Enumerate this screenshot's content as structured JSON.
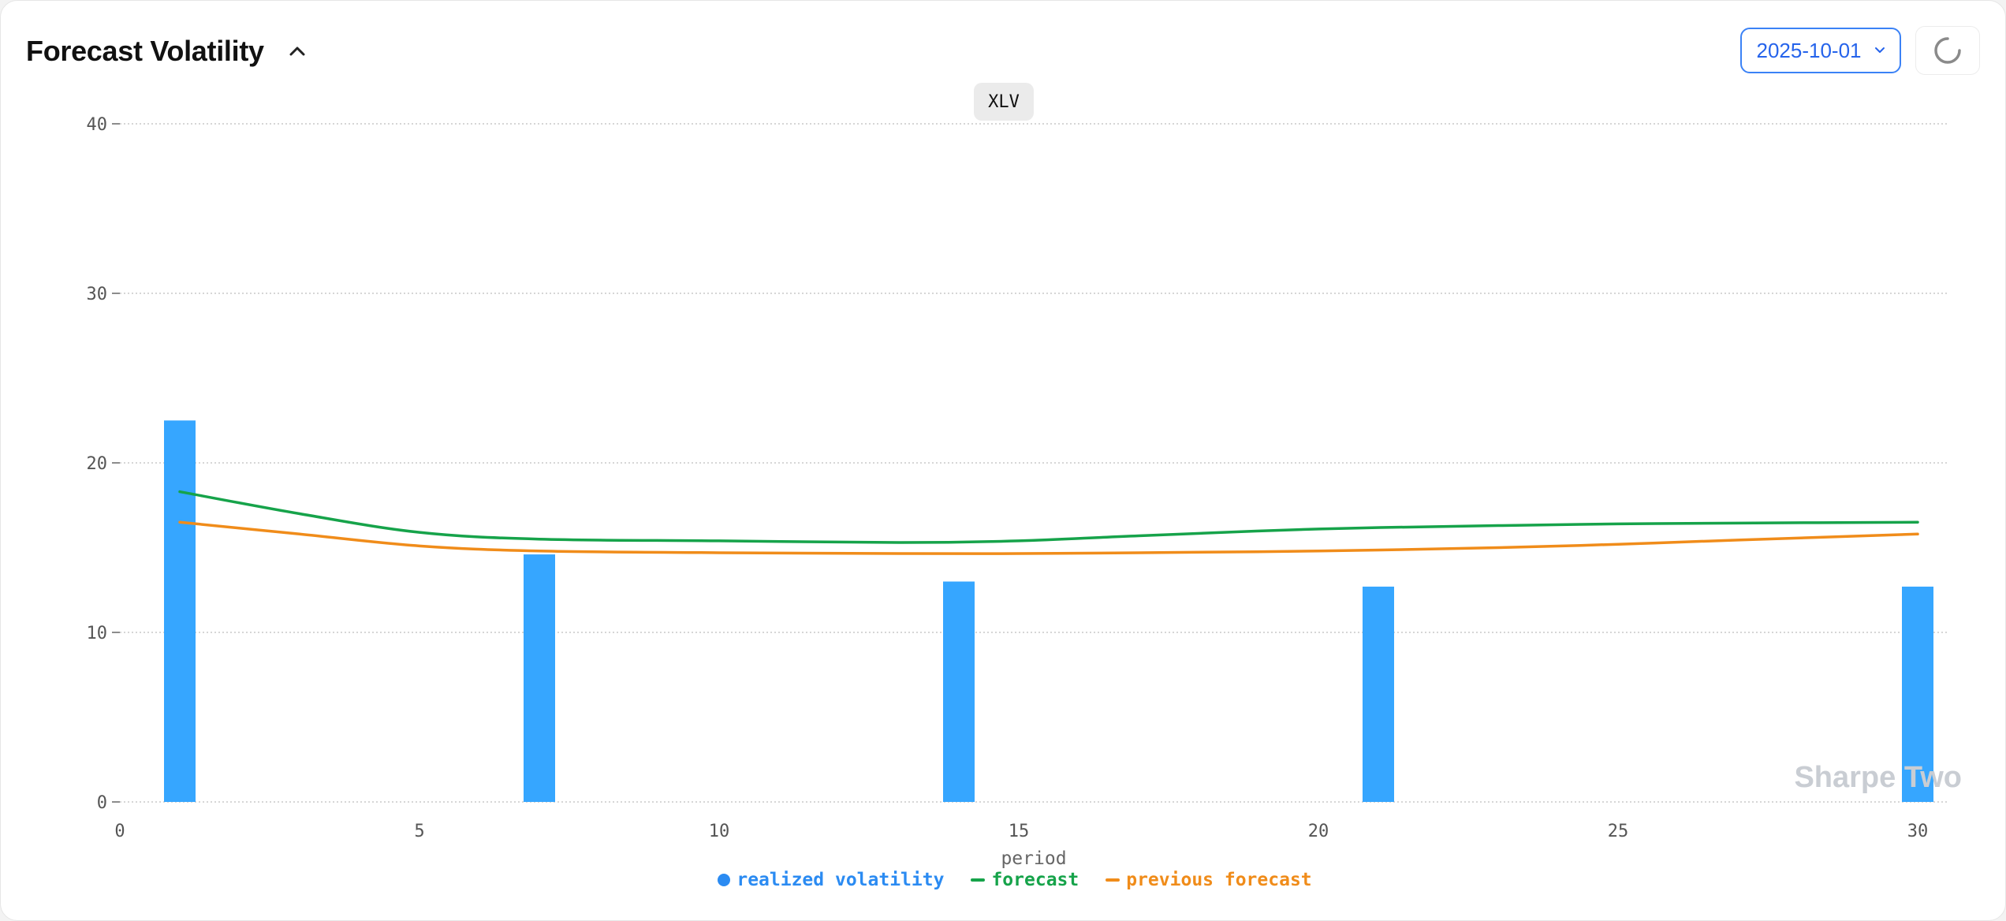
{
  "header": {
    "title": "Forecast Volatility"
  },
  "controls": {
    "date_value": "2025-10-01"
  },
  "ticker": "XLV",
  "watermark": "Sharpe Two",
  "colors": {
    "realized": "#36a6ff",
    "forecast": "#16a34a",
    "previous": "#f08c1a",
    "grid": "#c8c8c8",
    "legend_realized": "#2b8bf2"
  },
  "chart_data": {
    "type": "bar",
    "title": "",
    "xlabel": "period",
    "ylabel": "",
    "xlim": [
      0,
      30
    ],
    "ylim": [
      0,
      40
    ],
    "xticks": [
      0,
      5,
      10,
      15,
      20,
      25,
      30
    ],
    "yticks": [
      0,
      10,
      20,
      30,
      40
    ],
    "grid": true,
    "legend_position": "bottom-center",
    "series": [
      {
        "name": "realized volatility",
        "type": "bar",
        "x": [
          1,
          7,
          14,
          21,
          30
        ],
        "values": [
          22.5,
          14.6,
          13.0,
          12.7,
          12.7
        ]
      },
      {
        "name": "forecast",
        "type": "line",
        "x": [
          1,
          3,
          5,
          7,
          10,
          13,
          15,
          17,
          20,
          23,
          25,
          27,
          30
        ],
        "values": [
          18.3,
          17.0,
          15.9,
          15.5,
          15.4,
          15.3,
          15.4,
          15.7,
          16.1,
          16.3,
          16.4,
          16.45,
          16.5
        ]
      },
      {
        "name": "previous forecast",
        "type": "line",
        "x": [
          1,
          3,
          5,
          7,
          10,
          13,
          15,
          17,
          20,
          23,
          25,
          27,
          30
        ],
        "values": [
          16.5,
          15.8,
          15.1,
          14.8,
          14.7,
          14.65,
          14.65,
          14.7,
          14.8,
          15.0,
          15.2,
          15.45,
          15.8
        ]
      }
    ]
  }
}
